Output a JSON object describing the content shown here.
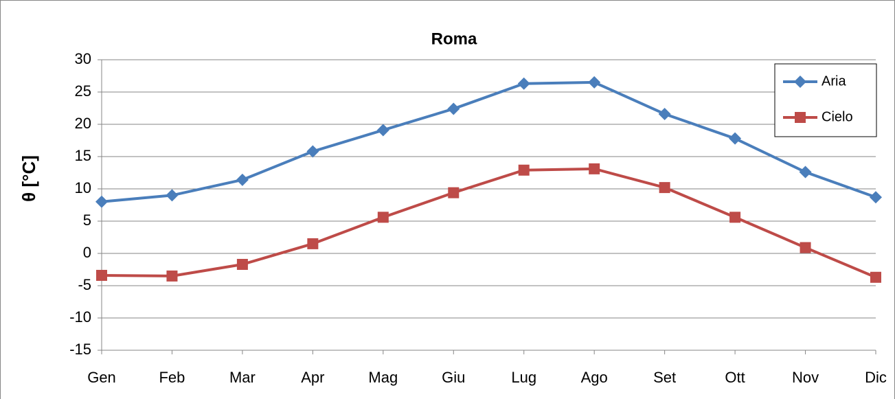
{
  "chart_data": {
    "type": "line",
    "title": "Roma",
    "y_label": "θ [°C]",
    "categories": [
      "Gen",
      "Feb",
      "Mar",
      "Apr",
      "Mag",
      "Giu",
      "Lug",
      "Ago",
      "Set",
      "Ott",
      "Nov",
      "Dic"
    ],
    "series": [
      {
        "name": "Aria",
        "color": "#4a7ebb",
        "marker": "diamond",
        "values": [
          8.0,
          9.0,
          11.4,
          15.8,
          19.1,
          22.4,
          26.3,
          26.5,
          21.6,
          17.8,
          12.6,
          8.7
        ]
      },
      {
        "name": "Cielo",
        "color": "#be4b48",
        "marker": "square",
        "values": [
          -3.4,
          -3.5,
          -1.7,
          1.5,
          5.6,
          9.4,
          12.9,
          13.1,
          10.2,
          5.6,
          0.9,
          -3.7
        ]
      }
    ],
    "ylim": [
      -15,
      30
    ],
    "yticks": [
      -15,
      -10,
      -5,
      0,
      5,
      10,
      15,
      20,
      25,
      30
    ],
    "grid": true,
    "legend": "top-right"
  }
}
